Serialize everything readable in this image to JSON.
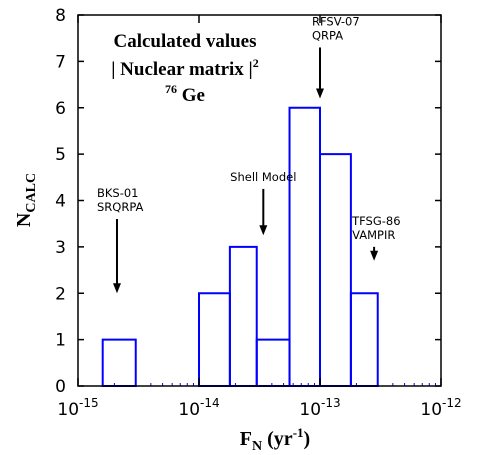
{
  "chart_data": {
    "type": "bar",
    "xscale": "log",
    "xlim": [
      1e-15,
      1e-12
    ],
    "ylim": [
      0,
      8
    ],
    "xlabel": {
      "main": "F",
      "sub": "N",
      "unit_open": " (yr",
      "unit_sup": "-1",
      "unit_close": ")"
    },
    "ylabel": {
      "main": "N",
      "sub": "CALC"
    },
    "x_tick_labels": [
      {
        "x": 1e-15,
        "base": "10",
        "exp": "-15"
      },
      {
        "x": 1e-14,
        "base": "10",
        "exp": "-14"
      },
      {
        "x": 1e-13,
        "base": "10",
        "exp": "-13"
      },
      {
        "x": 1e-12,
        "base": "10",
        "exp": "-12"
      }
    ],
    "y_ticks": [
      0,
      1,
      2,
      3,
      4,
      5,
      6,
      7,
      8
    ],
    "y_tick_labels": [
      "0",
      "1",
      "2",
      "3",
      "4",
      "5",
      "6",
      "7",
      "8"
    ],
    "bins": [
      {
        "x0": 1.6e-15,
        "x1": 3e-15,
        "value": 1
      },
      {
        "x0": 3e-15,
        "x1": 1e-14,
        "value": 0
      },
      {
        "x0": 1e-14,
        "x1": 1.8e-14,
        "value": 2
      },
      {
        "x0": 1.8e-14,
        "x1": 3e-14,
        "value": 3
      },
      {
        "x0": 3e-14,
        "x1": 5.6e-14,
        "value": 1
      },
      {
        "x0": 5.6e-14,
        "x1": 1e-13,
        "value": 6
      },
      {
        "x0": 1e-13,
        "x1": 1.8e-13,
        "value": 5
      },
      {
        "x0": 1.8e-13,
        "x1": 3e-13,
        "value": 2
      }
    ],
    "title_block": {
      "line1": "Calculated values",
      "line2_pre": "| Nuclear matrix |",
      "line2_sup": "2",
      "line3_sup": "76",
      "line3_main": " Ge"
    },
    "annotations": [
      {
        "id": "bks",
        "lines": [
          "BKS-01",
          "SRQRPA"
        ],
        "x": 2.1e-15,
        "arrow_from": 3.6,
        "arrow_to": 2.0
      },
      {
        "id": "shell",
        "lines": [
          "Shell Model"
        ],
        "x": 3.4e-14,
        "arrow_from": 4.25,
        "arrow_to": 3.25
      },
      {
        "id": "rfsv",
        "lines": [
          "RFSV-07",
          "QRPA"
        ],
        "x": 1e-13,
        "arrow_from": 7.3,
        "arrow_to": 6.2
      },
      {
        "id": "tfsg",
        "lines": [
          "TFSG-86",
          "VAMPIR"
        ],
        "x": 2.8e-13,
        "arrow_from": 3.0,
        "arrow_to": 2.7
      }
    ],
    "colors": {
      "bars": "#0000ff",
      "axis": "#000000",
      "minor_ticks": "#0000ff"
    }
  }
}
